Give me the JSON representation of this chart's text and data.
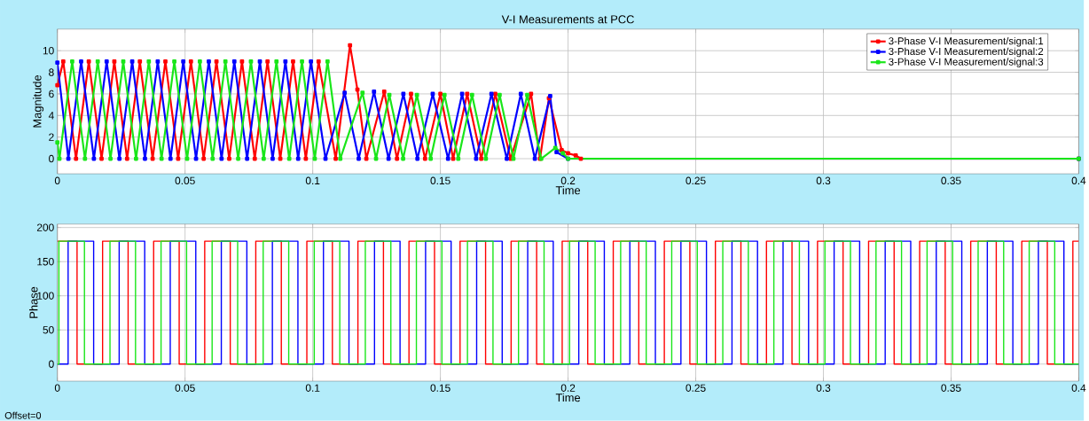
{
  "chart_data": [
    {
      "type": "line",
      "title": "V-I Measurements at PCC",
      "xlabel": "Time",
      "ylabel": "Magnitude",
      "xlim": [
        0,
        0.4
      ],
      "ylim": [
        -1.4,
        12
      ],
      "xticks": [
        0,
        0.05,
        0.1,
        0.15,
        0.2,
        0.25,
        0.3,
        0.35,
        0.4
      ],
      "yticks": [
        0,
        2,
        4,
        6,
        8,
        10
      ],
      "grid": true,
      "legend": "top right",
      "marker": "square",
      "series": [
        {
          "name": "3-Phase V-I Measurement/signal:1",
          "color": "#ff0000",
          "x": [
            0,
            0.0023,
            0.0073,
            0.0123,
            0.0173,
            0.0223,
            0.0273,
            0.0323,
            0.0373,
            0.0423,
            0.0473,
            0.0523,
            0.0573,
            0.0623,
            0.0673,
            0.0723,
            0.0773,
            0.0823,
            0.0873,
            0.0923,
            0.0973,
            0.1023,
            0.109,
            0.1146,
            0.1175,
            0.121,
            0.128,
            0.133,
            0.1385,
            0.144,
            0.15,
            0.155,
            0.1605,
            0.166,
            0.1715,
            0.1775,
            0.1855,
            0.189,
            0.1925,
            0.1975,
            0.2,
            0.203,
            0.205,
            0.4
          ],
          "values": [
            6.8,
            9,
            0,
            9,
            0,
            9,
            0,
            9,
            0,
            9,
            0,
            9,
            0,
            9,
            0,
            9,
            0,
            9,
            0,
            9,
            0,
            9,
            0,
            10.5,
            6.4,
            0,
            6.2,
            0,
            6,
            0,
            6,
            0,
            6,
            0,
            6,
            0,
            6,
            0,
            5.6,
            0.8,
            0.5,
            0.3,
            0,
            0
          ]
        },
        {
          "name": "3-Phase V-I Measurement/signal:2",
          "color": "#0000ff",
          "x": [
            0,
            0.0043,
            0.0093,
            0.0143,
            0.0193,
            0.0243,
            0.0293,
            0.0343,
            0.0393,
            0.0443,
            0.0493,
            0.0543,
            0.0593,
            0.0643,
            0.0693,
            0.0743,
            0.0793,
            0.0843,
            0.0893,
            0.0943,
            0.0993,
            0.105,
            0.1125,
            0.118,
            0.124,
            0.1297,
            0.1355,
            0.141,
            0.147,
            0.153,
            0.1585,
            0.164,
            0.17,
            0.176,
            0.1815,
            0.187,
            0.193,
            0.1955,
            0.2,
            0.4
          ],
          "values": [
            8.9,
            0,
            9,
            0,
            9,
            0,
            9,
            0,
            9,
            0,
            9,
            0,
            9,
            0,
            9,
            0,
            9,
            0,
            9,
            0,
            9,
            0,
            6.1,
            0,
            6.2,
            0,
            6,
            0,
            6,
            0,
            6,
            0,
            6,
            0,
            6,
            0,
            5.8,
            0.6,
            0,
            0
          ]
        },
        {
          "name": "3-Phase V-I Measurement/signal:3",
          "color": "#19e619",
          "x": [
            0,
            0.0008,
            0.0058,
            0.0108,
            0.0158,
            0.0208,
            0.0258,
            0.0308,
            0.0358,
            0.0408,
            0.0458,
            0.0508,
            0.0558,
            0.0608,
            0.0658,
            0.0708,
            0.0758,
            0.0808,
            0.0858,
            0.0908,
            0.0958,
            0.1008,
            0.1058,
            0.1108,
            0.1195,
            0.1248,
            0.13,
            0.1354,
            0.1408,
            0.1462,
            0.1516,
            0.157,
            0.1624,
            0.1678,
            0.1732,
            0.1786,
            0.184,
            0.1895,
            0.195,
            0.198,
            0.2,
            0.4
          ],
          "values": [
            1.5,
            0,
            9,
            0,
            9,
            0,
            9,
            0,
            9,
            0,
            9,
            0,
            9,
            0,
            9,
            0,
            9,
            0,
            9,
            0,
            9,
            0,
            9,
            0,
            6.1,
            0,
            5.9,
            0,
            5.9,
            0,
            5.9,
            0,
            5.9,
            0,
            5.9,
            0,
            5.9,
            0,
            1,
            0.5,
            0,
            0
          ]
        }
      ]
    },
    {
      "type": "step",
      "xlabel": "Time",
      "ylabel": "Phase",
      "xlim": [
        0,
        0.4
      ],
      "ylim": [
        -25,
        205
      ],
      "xticks": [
        0,
        0.05,
        0.1,
        0.15,
        0.2,
        0.25,
        0.3,
        0.35,
        0.4
      ],
      "yticks": [
        0,
        50,
        100,
        150,
        200
      ],
      "grid": true,
      "annotations": [
        "Offset=0"
      ],
      "series": [
        {
          "color": "#ff0000",
          "x": [
            0,
            0.0077,
            0.0177,
            0.0277,
            0.0377,
            0.0477,
            0.0577,
            0.0677,
            0.0777,
            0.0877,
            0.0977,
            0.1077,
            0.1177,
            0.1277,
            0.1377,
            0.1477,
            0.1577,
            0.1677,
            0.1777,
            0.1877,
            0.1977,
            0.2077,
            0.2177,
            0.2277,
            0.2377,
            0.2477,
            0.2577,
            0.2677,
            0.2777,
            0.2877,
            0.2977,
            0.3077,
            0.3177,
            0.3277,
            0.3377,
            0.3477,
            0.3577,
            0.3677,
            0.3777,
            0.3877,
            0.3977,
            0.4
          ],
          "values": [
            180,
            0,
            180,
            0,
            180,
            0,
            180,
            0,
            180,
            0,
            180,
            0,
            180,
            0,
            180,
            0,
            180,
            0,
            180,
            0,
            180,
            0,
            180,
            0,
            180,
            0,
            180,
            0,
            180,
            0,
            180,
            0,
            180,
            0,
            180,
            0,
            180,
            0,
            180,
            0,
            180,
            180
          ]
        },
        {
          "color": "#0000ff",
          "x": [
            0,
            0.0042,
            0.0142,
            0.0242,
            0.0342,
            0.0442,
            0.0542,
            0.0642,
            0.0742,
            0.0842,
            0.0942,
            0.1042,
            0.1142,
            0.1242,
            0.1342,
            0.1442,
            0.1542,
            0.1642,
            0.1742,
            0.1842,
            0.1942,
            0.2042,
            0.2142,
            0.2242,
            0.2342,
            0.2442,
            0.2542,
            0.2642,
            0.2742,
            0.2842,
            0.2942,
            0.3042,
            0.3142,
            0.3242,
            0.3342,
            0.3442,
            0.3542,
            0.3642,
            0.3742,
            0.3842,
            0.3942,
            0.4
          ],
          "values": [
            0,
            180,
            0,
            180,
            0,
            180,
            0,
            180,
            0,
            180,
            0,
            180,
            0,
            180,
            0,
            180,
            0,
            180,
            0,
            180,
            0,
            180,
            0,
            180,
            0,
            180,
            0,
            180,
            0,
            180,
            0,
            180,
            0,
            180,
            0,
            180,
            0,
            180,
            0,
            180,
            0,
            0
          ]
        },
        {
          "color": "#19e619",
          "x": [
            0,
            0.0006,
            0.0106,
            0.0206,
            0.0306,
            0.0406,
            0.0506,
            0.0606,
            0.0706,
            0.0806,
            0.0906,
            0.1006,
            0.1106,
            0.1206,
            0.1306,
            0.1406,
            0.1506,
            0.1606,
            0.1706,
            0.1806,
            0.1906,
            0.2006,
            0.2106,
            0.2206,
            0.2306,
            0.2406,
            0.2506,
            0.2606,
            0.2706,
            0.2806,
            0.2906,
            0.3006,
            0.3106,
            0.3206,
            0.3306,
            0.3406,
            0.3506,
            0.3606,
            0.3706,
            0.3806,
            0.3906,
            0.4
          ],
          "values": [
            0,
            180,
            0,
            180,
            0,
            180,
            0,
            180,
            0,
            180,
            0,
            180,
            0,
            180,
            0,
            180,
            0,
            180,
            0,
            180,
            0,
            180,
            0,
            180,
            0,
            180,
            0,
            180,
            0,
            180,
            0,
            180,
            0,
            180,
            0,
            180,
            0,
            180,
            0,
            180,
            0,
            0
          ]
        }
      ]
    }
  ]
}
